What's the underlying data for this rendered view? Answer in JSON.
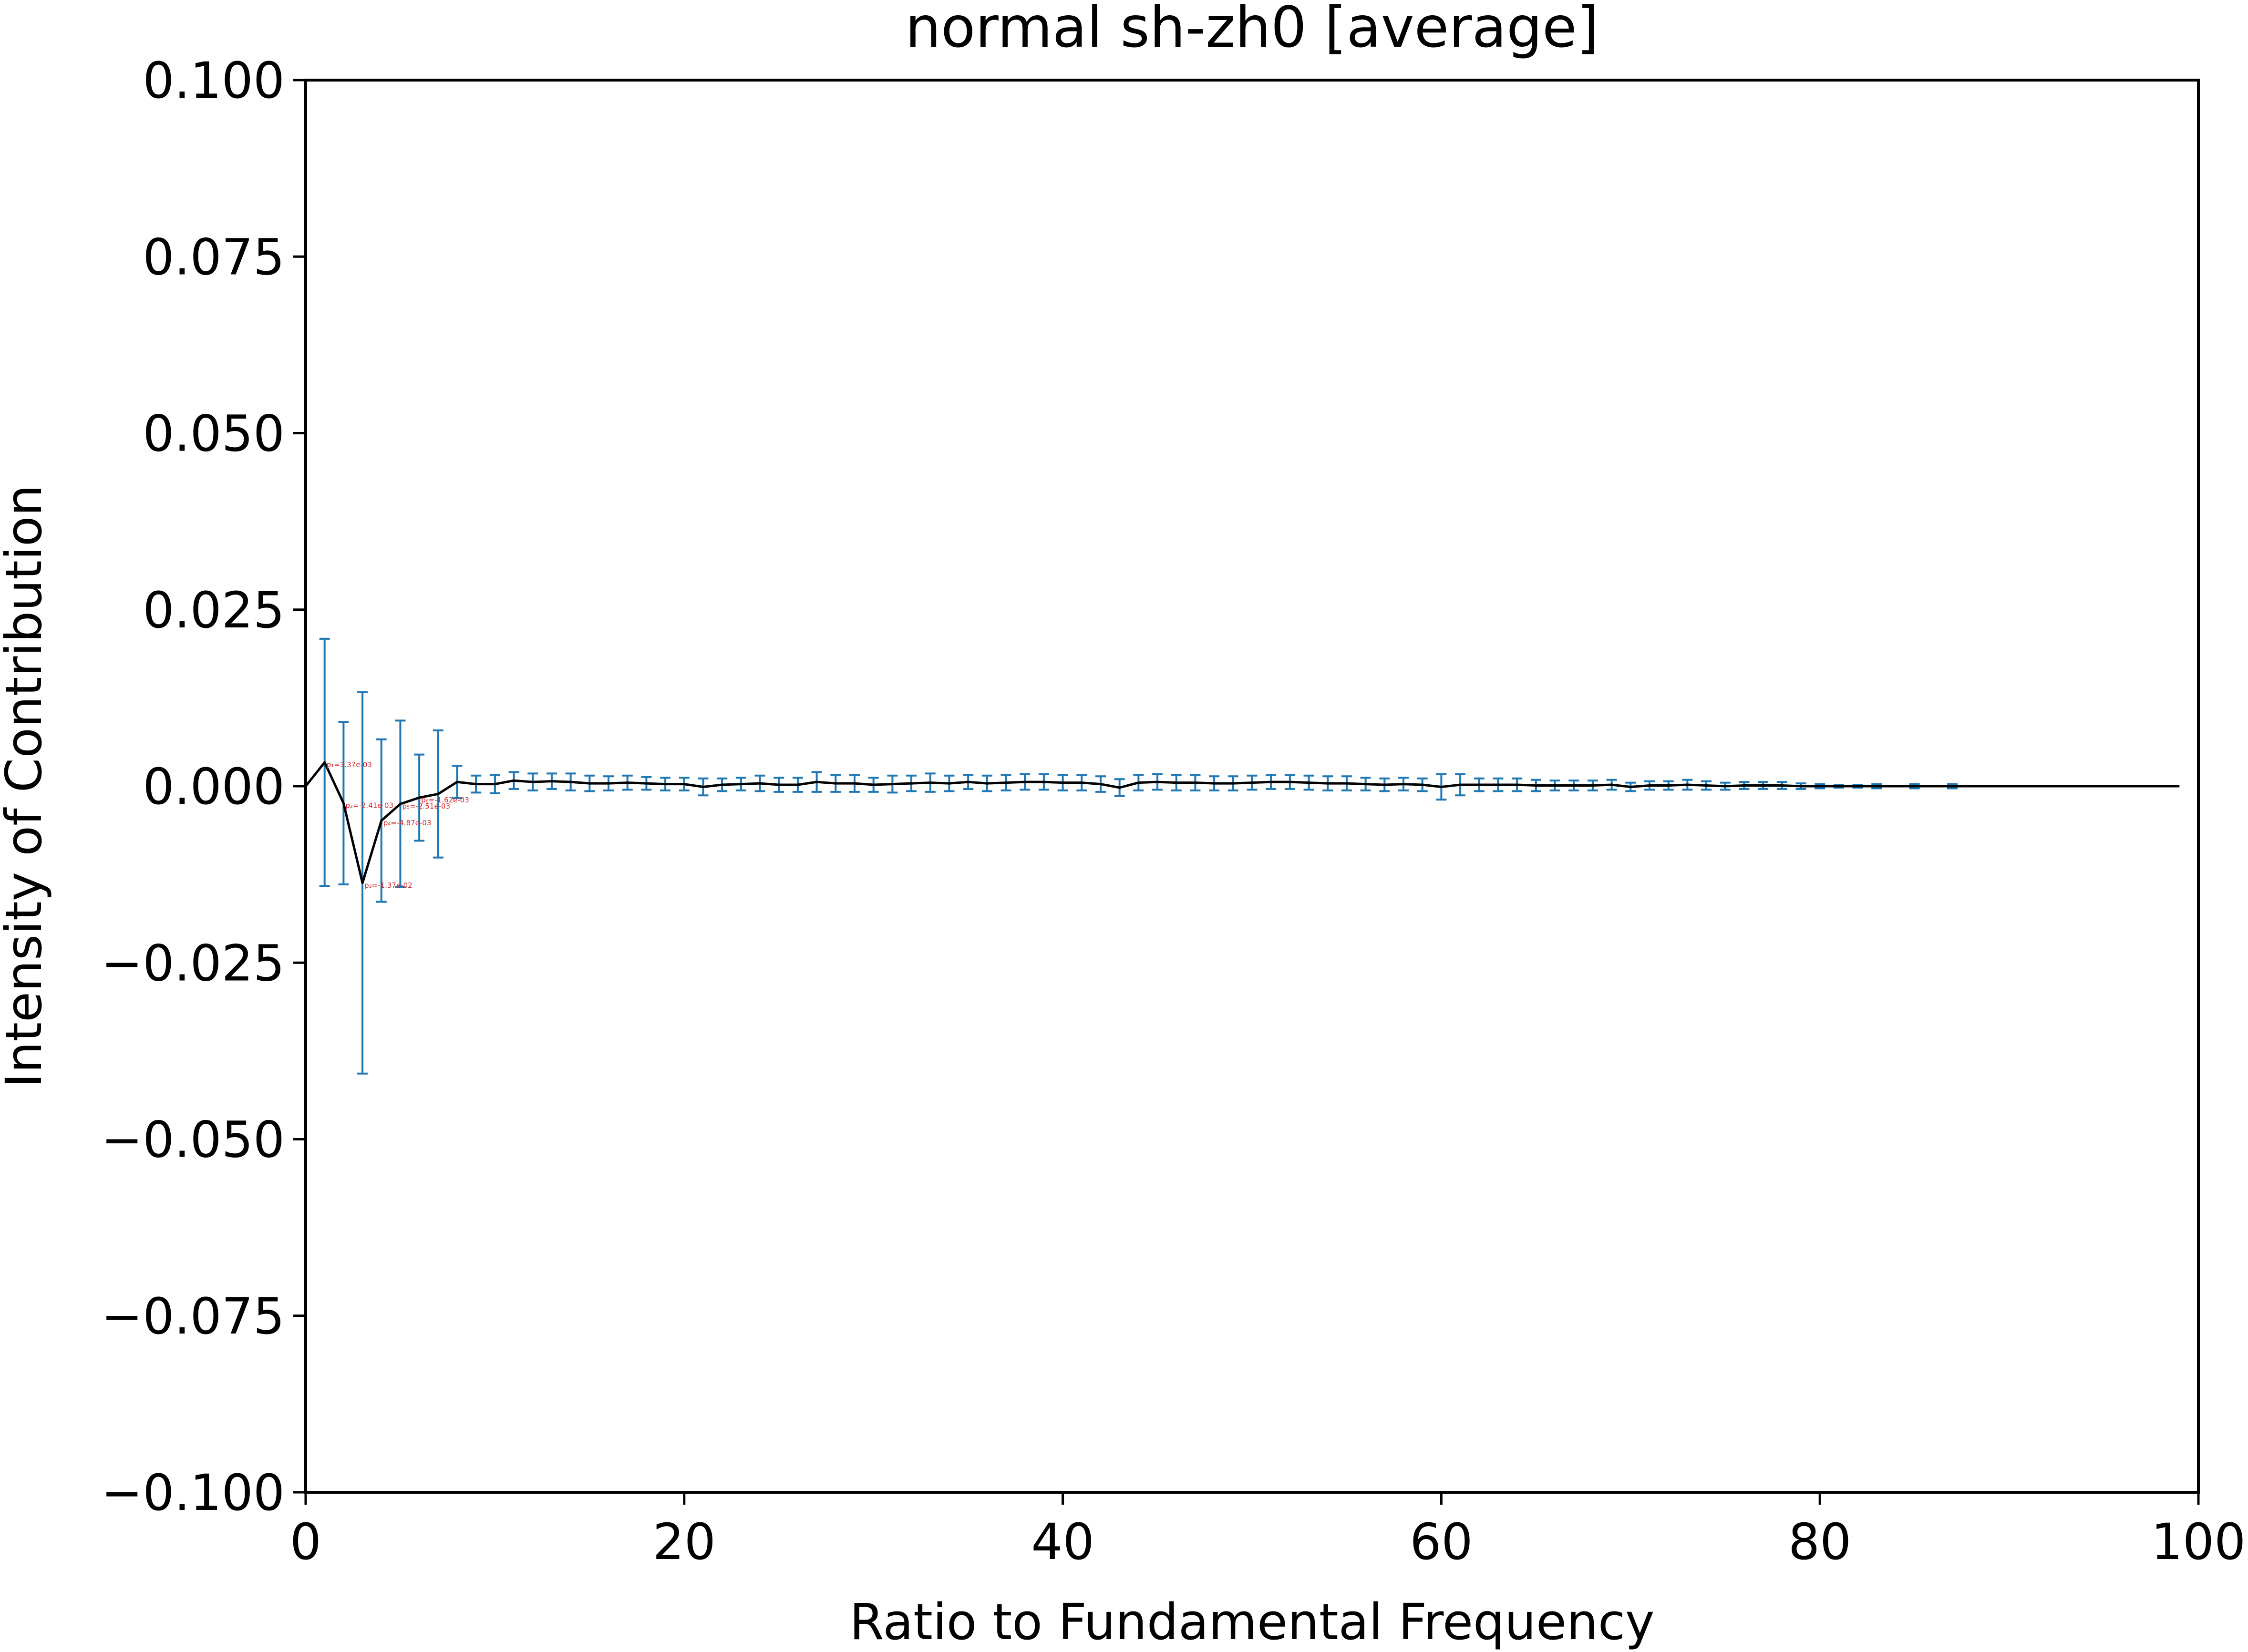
{
  "chart_data": {
    "type": "line",
    "title": "normal sh-zh0 [average]",
    "xlabel": "Ratio to Fundamental Frequency",
    "ylabel": "Intensity of Contribution",
    "xlim": [
      0,
      100
    ],
    "ylim": [
      -0.1,
      0.1
    ],
    "xticks": [
      0,
      20,
      40,
      60,
      80,
      100
    ],
    "xtick_labels": [
      "0",
      "20",
      "40",
      "60",
      "80",
      "100"
    ],
    "yticks": [
      -0.1,
      -0.075,
      -0.05,
      -0.025,
      0,
      0.025,
      0.05,
      0.075,
      0.1
    ],
    "ytick_labels": [
      "−0.100",
      "−0.075",
      "−0.050",
      "−0.025",
      "0.000",
      "0.025",
      "0.050",
      "0.075",
      "0.100"
    ],
    "grid": false,
    "line_color": "#000000",
    "errorbar_color": "#1f77b4",
    "annotation_color": "#d62728",
    "series": [
      {
        "x": [
          0,
          1,
          2,
          3,
          4,
          5,
          6,
          7,
          8,
          9,
          10,
          11,
          12,
          13,
          14,
          15,
          16,
          17,
          18,
          19,
          20,
          21,
          22,
          23,
          24,
          25,
          26,
          27,
          28,
          29,
          30,
          31,
          32,
          33,
          34,
          35,
          36,
          37,
          38,
          39,
          40,
          41,
          42,
          43,
          44,
          45,
          46,
          47,
          48,
          49,
          50,
          51,
          52,
          53,
          54,
          55,
          56,
          57,
          58,
          59,
          60,
          61,
          62,
          63,
          64,
          65,
          66,
          67,
          68,
          69,
          70,
          71,
          72,
          73,
          74,
          75,
          76,
          77,
          78,
          79,
          80,
          81,
          82,
          83,
          84,
          85,
          86,
          87,
          88,
          89,
          90,
          91,
          92,
          93,
          94,
          95,
          96,
          97,
          98,
          99
        ],
        "y": [
          0.0,
          0.00337,
          -0.00241,
          -0.0137,
          -0.00487,
          -0.00251,
          -0.00162,
          -0.0011,
          0.0006,
          0.0003,
          0.0003,
          0.0008,
          0.0006,
          0.0007,
          0.0006,
          0.0004,
          0.0004,
          0.0005,
          0.0004,
          0.0003,
          0.0003,
          -0.0001,
          0.0002,
          0.0003,
          0.0004,
          0.0002,
          0.0002,
          0.0006,
          0.0004,
          0.0004,
          0.0002,
          0.0003,
          0.0004,
          0.0005,
          0.0004,
          0.0006,
          0.0004,
          0.0005,
          0.0006,
          0.0006,
          0.0005,
          0.0005,
          0.0003,
          -0.0002,
          0.0005,
          0.0006,
          0.0005,
          0.0005,
          0.0004,
          0.0004,
          0.0005,
          0.0006,
          0.0006,
          0.0005,
          0.0004,
          0.0004,
          0.0003,
          0.0002,
          0.0003,
          0.0002,
          -0.0001,
          0.0002,
          0.0002,
          0.0002,
          0.0002,
          0.0001,
          0.0001,
          0.0001,
          0.0001,
          0.0002,
          -0.0001,
          0.0001,
          0.0001,
          0.0002,
          0.0001,
          0.0,
          0.0001,
          0.0001,
          0.0001,
          0.0,
          0.0,
          0.0,
          0.0,
          0.0,
          0.0,
          0.0,
          0.0,
          0.0,
          0.0,
          0.0,
          0.0,
          0.0,
          0.0,
          0.0,
          0.0,
          0.0,
          0.0,
          0.0,
          0.0,
          0.0
        ],
        "yerr": [
          0.0,
          0.0175,
          0.0115,
          0.027,
          0.0115,
          0.0118,
          0.0061,
          0.009,
          0.0023,
          0.0012,
          0.0013,
          0.0012,
          0.0012,
          0.0011,
          0.0012,
          0.0011,
          0.001,
          0.001,
          0.0009,
          0.0009,
          0.0009,
          0.0012,
          0.0009,
          0.0009,
          0.0011,
          0.001,
          0.001,
          0.0014,
          0.0012,
          0.0012,
          0.001,
          0.0012,
          0.0011,
          0.0013,
          0.0011,
          0.001,
          0.0011,
          0.0011,
          0.0011,
          0.0011,
          0.0011,
          0.0011,
          0.0011,
          0.0012,
          0.0011,
          0.0011,
          0.0011,
          0.0011,
          0.001,
          0.001,
          0.001,
          0.001,
          0.001,
          0.001,
          0.001,
          0.001,
          0.0009,
          0.0009,
          0.0009,
          0.0009,
          0.0018,
          0.0015,
          0.0009,
          0.0009,
          0.0009,
          0.0008,
          0.0007,
          0.0007,
          0.0007,
          0.0007,
          0.0006,
          0.0006,
          0.0006,
          0.0007,
          0.0006,
          0.0005,
          0.0005,
          0.0005,
          0.0005,
          0.0004,
          0.0003,
          0.0002,
          0.0002,
          0.0003,
          0.0,
          0.0003,
          0.0,
          0.0003,
          0.0,
          0.0,
          0.0,
          0.0,
          0.0,
          0.0,
          0.0,
          0.0,
          0.0,
          0.0,
          0.0,
          0.0
        ]
      }
    ],
    "annotations": [
      {
        "x": 1,
        "y": 0.00337,
        "text": "p₁=3.37e-03"
      },
      {
        "x": 2,
        "y": -0.00241,
        "text": "p₂=-2.41e-03"
      },
      {
        "x": 3,
        "y": -0.0137,
        "text": "p₃=-1.37e-02"
      },
      {
        "x": 4,
        "y": -0.00487,
        "text": "p₄=-4.87e-03"
      },
      {
        "x": 5,
        "y": -0.00251,
        "text": "p₅=-2.51e-03"
      },
      {
        "x": 6,
        "y": -0.00162,
        "text": "p₆=-1.62e-03"
      }
    ]
  }
}
